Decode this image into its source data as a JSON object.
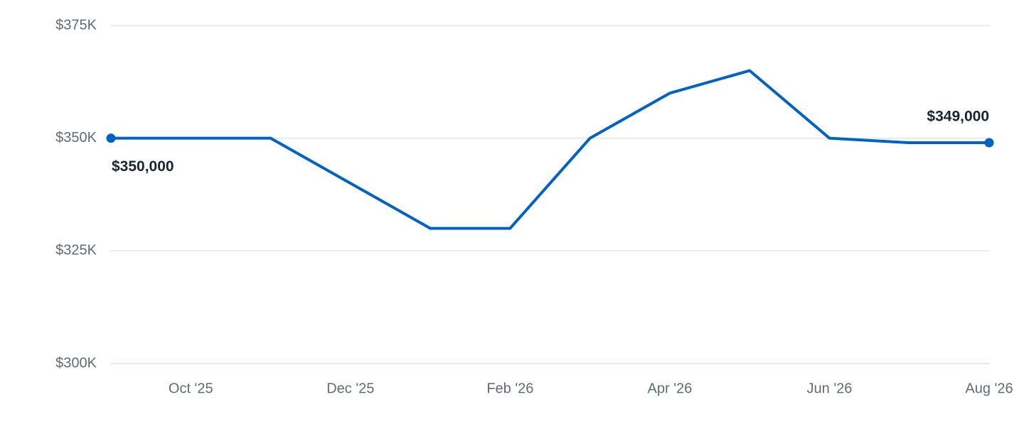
{
  "chart_data": {
    "type": "line",
    "categories": [
      null,
      "Oct '25",
      null,
      "Dec '25",
      null,
      "Feb '26",
      null,
      "Apr '26",
      null,
      "Jun '26",
      null,
      "Aug '26"
    ],
    "series": [
      {
        "color": "#0062c4",
        "values": [
          350000,
          350000,
          350000,
          340000,
          330000,
          330000,
          350000,
          360000,
          365000,
          350000,
          349000,
          349000
        ],
        "value_labels": [
          "$350,000",
          null,
          null,
          null,
          null,
          null,
          null,
          null,
          null,
          null,
          null,
          "$349,000"
        ]
      }
    ],
    "ylim": [
      300000,
      375000
    ],
    "yticks": [
      {
        "value": 300000,
        "label": "$300K"
      },
      {
        "value": 325000,
        "label": "$325K"
      },
      {
        "value": 350000,
        "label": "$350K"
      },
      {
        "value": 375000,
        "label": "$375K"
      }
    ],
    "grid": true
  }
}
